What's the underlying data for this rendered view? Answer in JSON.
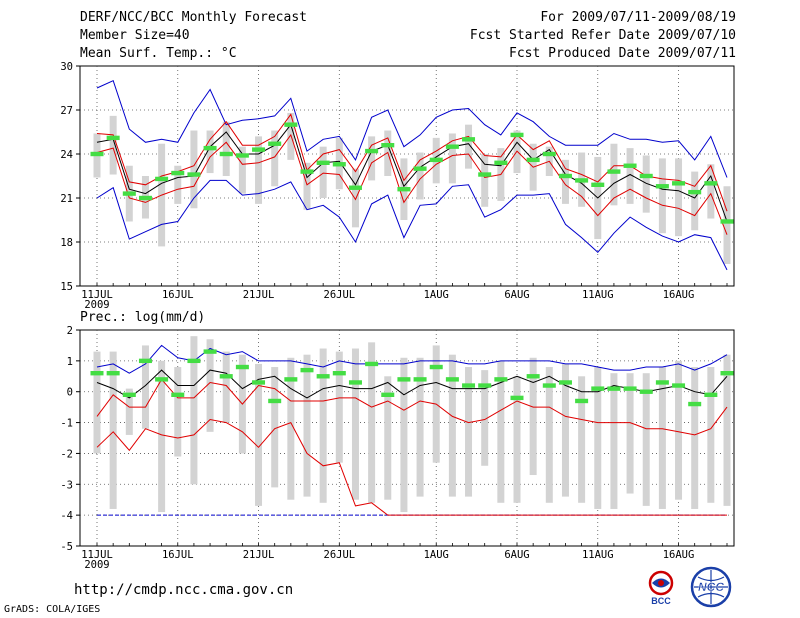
{
  "header": {
    "title": "DERF/NCC/BCC Monthly Forecast",
    "member_size": "Member Size=40",
    "period": "For 2009/07/11-2009/08/19",
    "fcst_started": "Fcst Started Refer Date 2009/07/10",
    "fcst_produced": "Fcst Produced Date 2009/07/11"
  },
  "footer": {
    "url": "http://cmdp.ncc.cma.gov.cn",
    "grads": "GrADS: COLA/IGES",
    "logo_bcc": "BCC",
    "logo_ncc": "NCC"
  },
  "colors": {
    "box": "#d3d3d3",
    "median": "#44dd44",
    "mean": "#000000",
    "spread": "#e00000",
    "envelope": "#0000cc",
    "grid": "#555555"
  },
  "chart_data": [
    {
      "type": "line",
      "title": "Mean Surf. Temp.: °C",
      "ylim": [
        15,
        30
      ],
      "yticks": [
        15,
        18,
        21,
        24,
        27,
        30
      ],
      "xticks": [
        "11JUL",
        "16JUL",
        "21JUL",
        "26JUL",
        "1AUG",
        "6AUG",
        "11AUG",
        "16AUG"
      ],
      "xticks_day_index": [
        0,
        5,
        10,
        15,
        21,
        26,
        31,
        36
      ],
      "year_label": "2009",
      "days": 40,
      "series": [
        {
          "name": "max",
          "values": [
            28.5,
            29.0,
            25.7,
            24.8,
            25.0,
            24.8,
            26.8,
            28.4,
            26.0,
            26.3,
            26.4,
            26.6,
            27.8,
            24.2,
            25.0,
            25.2,
            23.6,
            26.5,
            27.0,
            24.5,
            25.3,
            26.5,
            27.0,
            27.1,
            26.0,
            25.3,
            26.8,
            26.2,
            25.2,
            24.6,
            24.6,
            24.6,
            25.4,
            25.0,
            25.0,
            24.8,
            24.9,
            23.6,
            25.2,
            22.4
          ]
        },
        {
          "name": "upper",
          "values": [
            25.4,
            25.3,
            22.1,
            21.9,
            22.5,
            22.8,
            23.2,
            25.0,
            26.2,
            24.6,
            24.6,
            25.2,
            26.7,
            22.9,
            24.0,
            24.3,
            22.8,
            24.6,
            25.1,
            22.2,
            23.6,
            24.2,
            24.9,
            25.2,
            23.9,
            23.8,
            25.3,
            24.3,
            24.9,
            23.0,
            22.6,
            22.1,
            23.2,
            23.2,
            22.5,
            22.3,
            22.2,
            21.8,
            23.2,
            20.1
          ]
        },
        {
          "name": "mean",
          "values": [
            24.8,
            25.0,
            21.6,
            21.3,
            22.0,
            22.4,
            22.5,
            24.5,
            25.5,
            24.0,
            24.0,
            24.6,
            26.0,
            22.4,
            23.4,
            23.5,
            21.9,
            24.2,
            24.6,
            21.8,
            23.1,
            23.8,
            24.5,
            24.7,
            23.3,
            23.2,
            24.8,
            23.6,
            24.3,
            22.6,
            22.0,
            21.0,
            22.0,
            22.6,
            22.0,
            21.6,
            21.5,
            21.0,
            22.5,
            19.4
          ]
        },
        {
          "name": "lower",
          "values": [
            24.1,
            24.4,
            21.0,
            20.7,
            21.2,
            21.6,
            21.8,
            23.8,
            24.8,
            23.3,
            23.4,
            23.8,
            25.3,
            21.9,
            22.7,
            22.6,
            20.9,
            23.4,
            24.1,
            20.7,
            22.3,
            23.3,
            23.9,
            24.0,
            22.4,
            22.6,
            24.2,
            23.1,
            23.5,
            21.9,
            21.1,
            19.8,
            21.0,
            21.6,
            21.0,
            20.5,
            20.3,
            19.8,
            21.3,
            18.5
          ]
        },
        {
          "name": "min",
          "values": [
            21.0,
            21.7,
            18.2,
            18.7,
            19.2,
            19.4,
            21.0,
            22.2,
            22.2,
            21.2,
            21.3,
            21.6,
            22.1,
            20.2,
            20.5,
            19.7,
            18.0,
            20.6,
            21.2,
            18.3,
            20.5,
            20.6,
            21.8,
            21.9,
            19.7,
            20.2,
            21.2,
            21.2,
            21.3,
            19.2,
            18.3,
            17.3,
            18.6,
            19.7,
            19.0,
            18.4,
            18.0,
            18.5,
            18.3,
            16.1
          ]
        },
        {
          "name": "median",
          "values": [
            24.0,
            25.1,
            21.3,
            21.0,
            22.3,
            22.7,
            22.6,
            24.4,
            24.0,
            23.9,
            24.3,
            24.7,
            26.0,
            22.8,
            23.4,
            23.3,
            21.7,
            24.2,
            24.6,
            21.6,
            23.0,
            23.6,
            24.5,
            25.0,
            22.6,
            23.4,
            25.3,
            23.6,
            24.0,
            22.5,
            22.2,
            21.9,
            22.8,
            23.2,
            22.5,
            21.8,
            22.0,
            21.4,
            22.0,
            19.4
          ]
        },
        {
          "name": "box_top",
          "values": [
            25.4,
            26.6,
            23.2,
            22.5,
            24.7,
            23.2,
            25.6,
            25.6,
            26.2,
            24.5,
            25.2,
            25.6,
            26.8,
            23.4,
            24.5,
            25.1,
            23.0,
            25.2,
            25.6,
            23.7,
            24.1,
            25.1,
            25.4,
            26.0,
            24.0,
            24.4,
            25.6,
            24.7,
            24.5,
            23.6,
            24.1,
            23.8,
            24.7,
            24.4,
            23.9,
            23.7,
            23.7,
            22.8,
            23.3,
            21.8
          ]
        },
        {
          "name": "box_bottom",
          "values": [
            22.4,
            22.6,
            19.4,
            19.6,
            17.7,
            20.6,
            20.3,
            22.7,
            22.5,
            21.3,
            20.6,
            21.8,
            23.6,
            20.2,
            21.0,
            21.6,
            19.0,
            22.2,
            22.5,
            19.5,
            20.9,
            22.0,
            22.0,
            23.0,
            20.4,
            20.8,
            22.7,
            21.5,
            22.5,
            20.6,
            20.4,
            18.2,
            20.5,
            20.6,
            20.0,
            18.6,
            18.4,
            18.8,
            19.6,
            16.5
          ]
        }
      ]
    },
    {
      "type": "line",
      "title": "Prec.: log(mm/d)",
      "ylim": [
        -5,
        2
      ],
      "yticks": [
        -5,
        -4,
        -3,
        -2,
        -1,
        0,
        1,
        2
      ],
      "xticks": [
        "11JUL",
        "16JUL",
        "21JUL",
        "26JUL",
        "1AUG",
        "6AUG",
        "11AUG",
        "16AUG"
      ],
      "xticks_day_index": [
        0,
        5,
        10,
        15,
        21,
        26,
        31,
        36
      ],
      "year_label": "2009",
      "days": 40,
      "series": [
        {
          "name": "max",
          "values": [
            0.8,
            0.9,
            0.6,
            0.9,
            1.5,
            1.1,
            1.0,
            1.4,
            1.2,
            1.3,
            1.0,
            1.0,
            1.0,
            0.9,
            0.8,
            1.0,
            0.9,
            0.9,
            0.9,
            0.9,
            1.0,
            1.0,
            1.0,
            0.9,
            0.9,
            1.0,
            1.0,
            1.0,
            1.0,
            0.9,
            0.9,
            0.8,
            0.7,
            0.7,
            0.8,
            0.8,
            0.9,
            0.7,
            0.9,
            1.2
          ]
        },
        {
          "name": "mean",
          "values": [
            0.3,
            0.1,
            -0.2,
            0.2,
            0.7,
            0.2,
            0.2,
            0.7,
            0.6,
            0.1,
            0.4,
            0.5,
            0.1,
            -0.2,
            0.1,
            0.2,
            0.1,
            0.1,
            0.3,
            -0.1,
            0.2,
            0.3,
            0.1,
            0.1,
            0.1,
            0.3,
            0.5,
            0.3,
            0.5,
            0.2,
            0.0,
            0.0,
            0.2,
            0.1,
            0.0,
            0.1,
            0.2,
            0.0,
            -0.1,
            0.5
          ]
        },
        {
          "name": "lower",
          "values": [
            -0.8,
            -0.1,
            -0.5,
            -0.5,
            0.4,
            -0.2,
            -0.2,
            0.3,
            0.2,
            -0.4,
            0.2,
            0.1,
            -0.3,
            -0.3,
            -0.3,
            -0.2,
            -0.2,
            -0.5,
            -0.3,
            -0.6,
            -0.3,
            -0.4,
            -0.8,
            -1.0,
            -0.9,
            -0.6,
            -0.3,
            -0.5,
            -0.5,
            -0.8,
            -0.9,
            -1.0,
            -1.0,
            -1.0,
            -1.2,
            -1.2,
            -1.3,
            -1.4,
            -1.2,
            -0.5
          ]
        },
        {
          "name": "min",
          "values": [
            -1.8,
            -1.3,
            -1.9,
            -1.2,
            -1.4,
            -1.5,
            -1.4,
            -0.9,
            -1.0,
            -1.3,
            -1.8,
            -1.2,
            -1.0,
            -2.0,
            -2.4,
            -2.3,
            -3.7,
            -3.6,
            -4.0,
            -4.0,
            -4.0,
            -4.0,
            -4.0,
            -4.0,
            -4.0,
            -4.0,
            -4.0,
            -4.0,
            -4.0,
            -4.0,
            -4.0,
            -4.0,
            -4.0,
            -4.0,
            -4.0,
            -4.0,
            -4.0,
            -4.0,
            -4.0,
            -4.0
          ]
        },
        {
          "name": "median",
          "values": [
            0.6,
            0.6,
            -0.1,
            1.0,
            0.4,
            -0.1,
            1.0,
            1.3,
            0.5,
            0.8,
            0.3,
            -0.3,
            0.4,
            0.7,
            0.5,
            0.6,
            0.3,
            0.9,
            -0.1,
            0.4,
            0.4,
            0.8,
            0.4,
            0.2,
            0.2,
            0.4,
            -0.2,
            0.5,
            0.2,
            0.3,
            -0.3,
            0.1,
            0.1,
            0.1,
            0.0,
            0.3,
            0.2,
            -0.4,
            -0.1,
            0.6
          ]
        },
        {
          "name": "box_top",
          "values": [
            1.3,
            1.3,
            0.1,
            1.5,
            1.0,
            0.8,
            1.8,
            1.7,
            1.3,
            1.2,
            0.9,
            0.8,
            1.1,
            1.2,
            1.4,
            1.3,
            1.4,
            1.6,
            0.5,
            1.1,
            1.1,
            1.5,
            1.2,
            0.8,
            0.7,
            1.0,
            0.5,
            1.1,
            0.8,
            0.9,
            0.5,
            0.8,
            0.6,
            0.6,
            0.6,
            0.8,
            1.0,
            0.8,
            0.8,
            1.2
          ]
        },
        {
          "name": "box_bottom",
          "values": [
            -2.0,
            -3.8,
            -1.4,
            -1.2,
            -3.9,
            -2.1,
            -3.0,
            -1.3,
            -1.0,
            -2.0,
            -3.7,
            -3.1,
            -3.5,
            -3.4,
            -3.6,
            -2.3,
            -3.5,
            -3.6,
            -3.5,
            -3.9,
            -3.4,
            -2.3,
            -3.4,
            -3.4,
            -2.4,
            -3.6,
            -3.6,
            -2.7,
            -3.6,
            -3.4,
            -3.6,
            -3.8,
            -3.8,
            -3.3,
            -3.7,
            -3.8,
            -3.5,
            -3.8,
            -3.6,
            -3.7
          ]
        }
      ]
    }
  ]
}
